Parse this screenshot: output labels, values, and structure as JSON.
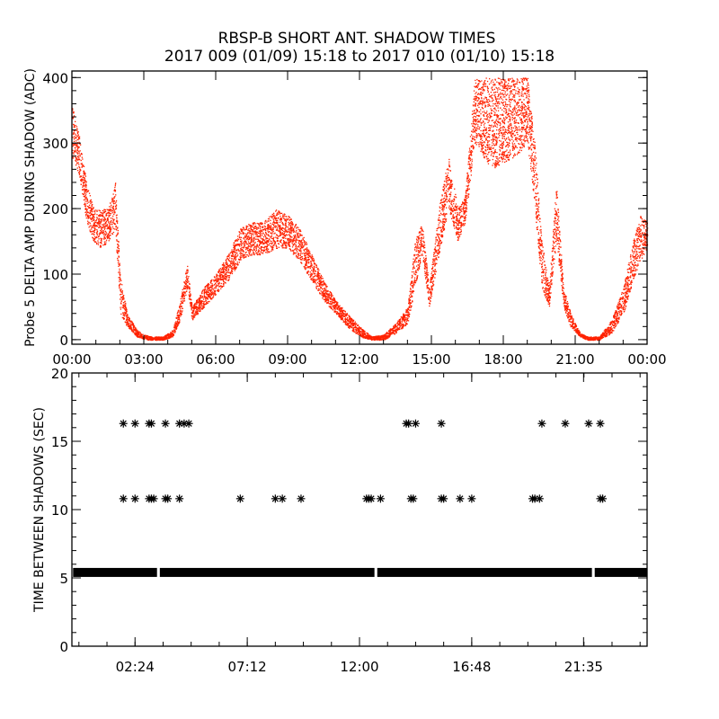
{
  "title": "RBSP-B SHORT ANT. SHADOW TIMES",
  "subtitle": "2017 009 (01/09) 15:18 to 2017 010 (01/10) 15:18",
  "colors": {
    "points": "#ff2200",
    "stars": "#000000",
    "axes": "#000000"
  },
  "chart_data": [
    {
      "type": "scatter",
      "ylabel": "Probe 5 DELTA AMP DURING SHADOW (ADC)",
      "xlabel": "",
      "xlim_hours": [
        0,
        24
      ],
      "ylim": [
        -7,
        410
      ],
      "xtick_labels": [
        "00:00",
        "03:00",
        "06:00",
        "09:00",
        "12:00",
        "15:00",
        "18:00",
        "21:00",
        "00:00"
      ],
      "ytick_labels": [
        "0",
        "100",
        "200",
        "300",
        "400"
      ],
      "yticks": [
        0,
        100,
        200,
        300,
        400
      ],
      "point_color": "#ff2200",
      "bands_hour_min_max": [
        [
          0.0,
          280,
          360
        ],
        [
          0.3,
          250,
          310
        ],
        [
          0.6,
          180,
          240
        ],
        [
          0.9,
          150,
          200
        ],
        [
          1.2,
          140,
          200
        ],
        [
          1.5,
          150,
          200
        ],
        [
          1.8,
          170,
          240
        ],
        [
          2.0,
          40,
          100
        ],
        [
          2.3,
          20,
          40
        ],
        [
          2.7,
          5,
          15
        ],
        [
          3.0,
          0,
          8
        ],
        [
          3.3,
          0,
          5
        ],
        [
          3.8,
          0,
          5
        ],
        [
          4.2,
          5,
          15
        ],
        [
          4.5,
          30,
          60
        ],
        [
          4.8,
          80,
          115
        ],
        [
          5.0,
          30,
          50
        ],
        [
          5.5,
          50,
          80
        ],
        [
          6.0,
          70,
          100
        ],
        [
          6.5,
          90,
          130
        ],
        [
          7.0,
          120,
          170
        ],
        [
          7.5,
          130,
          180
        ],
        [
          8.0,
          130,
          180
        ],
        [
          8.5,
          140,
          200
        ],
        [
          9.0,
          140,
          190
        ],
        [
          9.5,
          120,
          170
        ],
        [
          10.0,
          90,
          130
        ],
        [
          10.5,
          60,
          90
        ],
        [
          11.0,
          40,
          60
        ],
        [
          11.5,
          20,
          40
        ],
        [
          12.0,
          5,
          20
        ],
        [
          12.5,
          0,
          5
        ],
        [
          13.0,
          0,
          8
        ],
        [
          13.5,
          10,
          25
        ],
        [
          14.0,
          25,
          50
        ],
        [
          14.3,
          80,
          150
        ],
        [
          14.6,
          130,
          180
        ],
        [
          14.9,
          50,
          80
        ],
        [
          15.3,
          130,
          200
        ],
        [
          15.7,
          200,
          280
        ],
        [
          16.1,
          150,
          200
        ],
        [
          16.4,
          180,
          220
        ],
        [
          16.8,
          300,
          400
        ],
        [
          17.5,
          260,
          400
        ],
        [
          18.0,
          270,
          400
        ],
        [
          18.5,
          280,
          400
        ],
        [
          19.0,
          300,
          400
        ],
        [
          19.3,
          200,
          300
        ],
        [
          19.6,
          80,
          150
        ],
        [
          19.9,
          50,
          80
        ],
        [
          20.2,
          150,
          240
        ],
        [
          20.5,
          50,
          80
        ],
        [
          20.8,
          20,
          40
        ],
        [
          21.2,
          5,
          10
        ],
        [
          21.5,
          0,
          5
        ],
        [
          22.0,
          0,
          5
        ],
        [
          22.5,
          10,
          30
        ],
        [
          23.0,
          40,
          80
        ],
        [
          23.4,
          90,
          150
        ],
        [
          23.7,
          120,
          190
        ],
        [
          24.0,
          140,
          180
        ]
      ]
    },
    {
      "type": "scatter",
      "ylabel": "TIME BETWEEN SHADOWS (SEC)",
      "xlabel": "",
      "xlim_hours": [
        -0.3,
        24.3
      ],
      "ylim": [
        0,
        20
      ],
      "xticks_hours": [
        2.4,
        7.2,
        12.0,
        16.8,
        21.583
      ],
      "xtick_labels": [
        "02:24",
        "07:12",
        "12:00",
        "16:48",
        "21:35"
      ],
      "yticks": [
        0,
        5,
        10,
        15,
        20
      ],
      "ytick_labels": [
        "0",
        "5",
        "10",
        "15",
        "20"
      ],
      "marker": "asterisk",
      "baseline_value": 5.4,
      "baseline_gaps_hours": [
        3.4,
        12.7,
        22.0
      ],
      "points_16_3_hours": [
        1.9,
        2.4,
        3.0,
        3.1,
        3.7,
        4.3,
        4.5,
        4.7,
        14.0,
        14.1,
        14.4,
        15.5,
        19.8,
        20.8,
        21.8,
        22.3
      ],
      "points_10_8_hours": [
        1.9,
        2.4,
        3.0,
        3.1,
        3.2,
        3.7,
        3.8,
        4.3,
        6.9,
        8.4,
        8.7,
        9.5,
        12.3,
        12.4,
        12.5,
        12.9,
        14.2,
        14.3,
        15.5,
        15.6,
        16.3,
        16.8,
        19.4,
        19.5,
        19.7,
        22.3,
        22.4
      ]
    }
  ]
}
